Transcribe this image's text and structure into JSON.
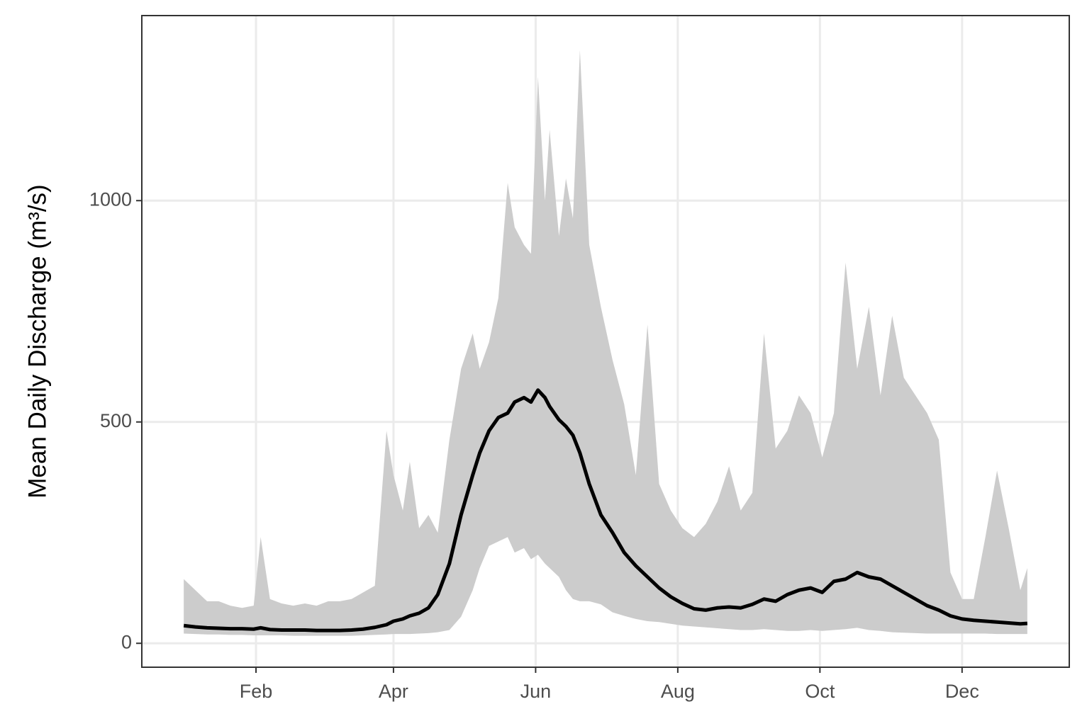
{
  "chart_data": {
    "type": "line",
    "ylabel": "Mean Daily Discharge (m³/s)",
    "x": [
      1,
      6,
      11,
      16,
      21,
      26,
      31,
      34,
      38,
      43,
      48,
      53,
      58,
      63,
      68,
      73,
      78,
      83,
      88,
      91,
      95,
      98,
      102,
      106,
      110,
      115,
      120,
      125,
      128,
      132,
      136,
      140,
      143,
      147,
      150,
      153,
      156,
      158,
      162,
      165,
      168,
      171,
      175,
      180,
      185,
      190,
      195,
      200,
      205,
      210,
      215,
      220,
      225,
      230,
      235,
      240,
      245,
      250,
      255,
      260,
      265,
      270,
      275,
      280,
      285,
      290,
      295,
      300,
      305,
      310,
      315,
      320,
      325,
      330,
      335,
      340,
      345,
      350,
      355,
      360,
      363
    ],
    "series": [
      {
        "color": "#000000",
        "values": [
          40,
          37,
          35,
          34,
          33,
          33,
          32,
          35,
          31,
          30,
          30,
          30,
          29,
          29,
          29,
          30,
          32,
          36,
          42,
          50,
          55,
          62,
          68,
          80,
          110,
          180,
          290,
          380,
          430,
          480,
          510,
          520,
          545,
          555,
          545,
          572,
          555,
          535,
          505,
          490,
          470,
          430,
          360,
          290,
          250,
          205,
          175,
          150,
          125,
          105,
          90,
          78,
          75,
          80,
          82,
          80,
          88,
          100,
          95,
          110,
          120,
          125,
          115,
          140,
          145,
          160,
          150,
          145,
          130,
          115,
          100,
          85,
          75,
          62,
          55,
          52,
          50,
          48,
          46,
          44,
          45
        ]
      }
    ],
    "band": {
      "color": "#cccccc",
      "lower": [
        22,
        21,
        20,
        20,
        19,
        19,
        18,
        18,
        18,
        18,
        17,
        17,
        17,
        17,
        17,
        17,
        18,
        19,
        20,
        21,
        21,
        21,
        22,
        23,
        25,
        30,
        60,
        120,
        170,
        220,
        230,
        240,
        205,
        215,
        190,
        200,
        180,
        170,
        150,
        120,
        100,
        95,
        95,
        88,
        70,
        62,
        55,
        50,
        48,
        44,
        40,
        38,
        36,
        34,
        32,
        30,
        30,
        32,
        30,
        28,
        28,
        30,
        28,
        30,
        32,
        35,
        30,
        28,
        25,
        24,
        23,
        22,
        22,
        22,
        22,
        22,
        22,
        21,
        21,
        21,
        21
      ],
      "upper": [
        145,
        120,
        95,
        95,
        85,
        80,
        85,
        240,
        100,
        90,
        85,
        90,
        85,
        95,
        95,
        100,
        115,
        130,
        480,
        380,
        300,
        410,
        260,
        290,
        250,
        460,
        620,
        700,
        620,
        680,
        780,
        1040,
        940,
        900,
        880,
        1280,
        1000,
        1160,
        920,
        1050,
        960,
        1340,
        900,
        760,
        640,
        540,
        380,
        720,
        360,
        300,
        260,
        240,
        270,
        320,
        400,
        300,
        340,
        700,
        440,
        480,
        560,
        520,
        420,
        520,
        860,
        620,
        760,
        560,
        740,
        600,
        560,
        520,
        460,
        160,
        100,
        100,
        240,
        390,
        260,
        120,
        170
      ]
    },
    "xlim": [
      -17,
      381
    ],
    "xticks": [
      {
        "value": 32,
        "label": "Feb"
      },
      {
        "value": 91,
        "label": "Apr"
      },
      {
        "value": 152,
        "label": "Jun"
      },
      {
        "value": 213,
        "label": "Aug"
      },
      {
        "value": 274,
        "label": "Oct"
      },
      {
        "value": 335,
        "label": "Dec"
      }
    ],
    "ylim": [
      -54,
      1418
    ],
    "yticks": [
      0,
      500,
      1000
    ],
    "grid": true
  }
}
